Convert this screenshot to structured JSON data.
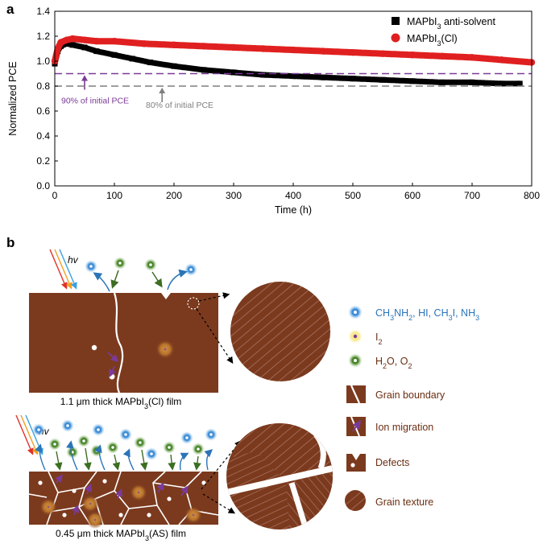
{
  "panel_a": {
    "letter": "a"
  },
  "panel_b": {
    "letter": "b"
  },
  "chart_data": {
    "type": "line",
    "xlabel": "Time (h)",
    "ylabel": "Normalized PCE",
    "xlim": [
      0,
      800
    ],
    "ylim": [
      0,
      1.4
    ],
    "xticks": [
      "0",
      "100",
      "200",
      "300",
      "400",
      "500",
      "600",
      "700",
      "800"
    ],
    "yticks": [
      "0.0",
      "0.2",
      "0.4",
      "0.6",
      "0.8",
      "1.0",
      "1.2",
      "1.4"
    ],
    "grid": false,
    "legend_position": "top-right",
    "series": [
      {
        "name_parts": [
          "MAPbI",
          "3",
          " anti-solvent"
        ],
        "color": "#000000",
        "marker": "square",
        "x": [
          0,
          5,
          10,
          20,
          30,
          50,
          70,
          100,
          130,
          160,
          200,
          250,
          300,
          350,
          400,
          450,
          500,
          550,
          600,
          650,
          700,
          750,
          780
        ],
        "y": [
          0.98,
          1.08,
          1.12,
          1.14,
          1.13,
          1.11,
          1.08,
          1.05,
          1.02,
          0.99,
          0.96,
          0.93,
          0.91,
          0.89,
          0.88,
          0.87,
          0.86,
          0.85,
          0.84,
          0.83,
          0.83,
          0.82,
          0.82
        ]
      },
      {
        "name_parts": [
          "MAPbI",
          "3",
          "(Cl)"
        ],
        "color": "#e02020",
        "marker": "circle",
        "x": [
          0,
          5,
          10,
          20,
          30,
          50,
          70,
          100,
          150,
          200,
          250,
          300,
          350,
          400,
          450,
          500,
          550,
          600,
          650,
          700,
          750,
          800
        ],
        "y": [
          1.0,
          1.1,
          1.15,
          1.17,
          1.18,
          1.17,
          1.16,
          1.16,
          1.14,
          1.13,
          1.12,
          1.11,
          1.1,
          1.09,
          1.08,
          1.07,
          1.06,
          1.05,
          1.04,
          1.03,
          1.01,
          0.99
        ]
      }
    ],
    "reference_lines": [
      {
        "y": 0.9,
        "color": "#7b3a98",
        "label": "90% of initial PCE",
        "arrow_x": 50
      },
      {
        "y": 0.8,
        "color": "#7f7f7f",
        "label": "80% of initial PCE",
        "arrow_x": 180
      }
    ]
  },
  "diagram": {
    "hv": "hv",
    "film_top_label": [
      "1.1 μm thick MAPbI",
      "3",
      "(Cl) film"
    ],
    "film_bottom_label": [
      "0.45 μm thick MAPbI",
      "3",
      "(AS) film"
    ],
    "legend": {
      "species_blue": [
        "CH",
        "3",
        "NH",
        "2",
        ", HI, CH",
        "3",
        "I, NH",
        "3"
      ],
      "species_yellow": [
        "I",
        "2"
      ],
      "species_green": [
        "H",
        "2",
        "O, O",
        "2"
      ],
      "grain_boundary": "Grain boundary",
      "ion_migration": "Ion migration",
      "defects": "Defects",
      "grain_texture": "Grain texture"
    },
    "colors": {
      "film": "#7b3a1e",
      "blue": "#3a8fd8",
      "green": "#4f8a2e",
      "yellow": "#f2d24a",
      "purple": "#7b3a98"
    }
  }
}
